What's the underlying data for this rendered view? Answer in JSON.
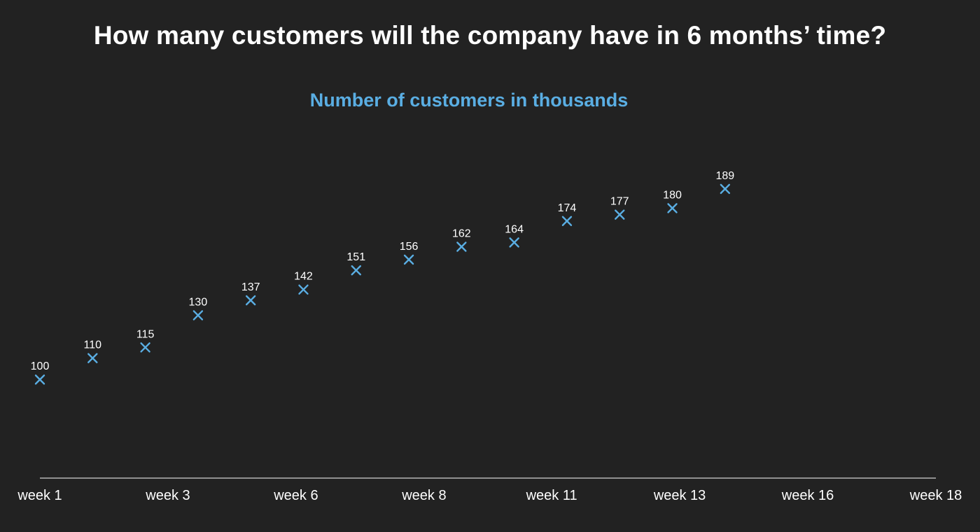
{
  "title": "How many customers will the company have in 6 months’ time?",
  "colors": {
    "background": "#222222",
    "marker": "#5aaee3",
    "text": "#ffffff",
    "axis": "#ffffff"
  },
  "chart_data": {
    "type": "scatter",
    "title": "Number of customers in thousands",
    "marker": "x",
    "x": [
      1,
      2,
      3,
      4,
      5,
      6,
      7,
      8,
      9,
      10,
      11,
      12,
      13,
      14
    ],
    "y": [
      100,
      110,
      115,
      130,
      137,
      142,
      151,
      156,
      162,
      164,
      174,
      177,
      180,
      189
    ],
    "data_labels": [
      "100",
      "110",
      "115",
      "130",
      "137",
      "142",
      "151",
      "156",
      "162",
      "164",
      "174",
      "177",
      "180",
      "189"
    ],
    "xlim": [
      1,
      18
    ],
    "x_ticks": [
      {
        "x": 1,
        "label": "week 1"
      },
      {
        "x": 3.43,
        "label": "week 3"
      },
      {
        "x": 5.86,
        "label": "week 6"
      },
      {
        "x": 8.29,
        "label": "week 8"
      },
      {
        "x": 10.71,
        "label": "week 11"
      },
      {
        "x": 13.14,
        "label": "week 13"
      },
      {
        "x": 15.57,
        "label": "week 16"
      },
      {
        "x": 18,
        "label": "week 18"
      }
    ],
    "ylim": [
      54,
      220
    ],
    "grid": false,
    "legend": "none"
  }
}
